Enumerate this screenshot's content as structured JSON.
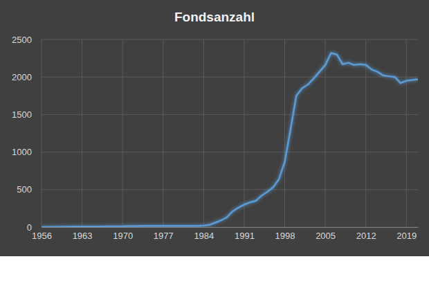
{
  "chart_data": {
    "type": "line",
    "title": "Fondsanzahl",
    "x": [
      1956,
      1957,
      1958,
      1959,
      1960,
      1961,
      1962,
      1963,
      1964,
      1965,
      1966,
      1967,
      1968,
      1969,
      1970,
      1971,
      1972,
      1973,
      1974,
      1975,
      1976,
      1977,
      1978,
      1979,
      1980,
      1981,
      1982,
      1983,
      1984,
      1985,
      1986,
      1987,
      1988,
      1989,
      1990,
      1991,
      1992,
      1993,
      1994,
      1995,
      1996,
      1997,
      1998,
      1999,
      2000,
      2001,
      2002,
      2003,
      2004,
      2005,
      2006,
      2007,
      2008,
      2009,
      2010,
      2011,
      2012,
      2013,
      2014,
      2015,
      2016,
      2017,
      2018,
      2019,
      2020,
      2021
    ],
    "values": [
      1,
      2,
      3,
      4,
      5,
      6,
      6,
      7,
      7,
      8,
      8,
      9,
      9,
      10,
      11,
      14,
      14,
      15,
      15,
      15,
      15,
      15,
      15,
      16,
      16,
      16,
      17,
      17,
      20,
      30,
      60,
      90,
      130,
      210,
      260,
      300,
      330,
      350,
      420,
      470,
      530,
      640,
      870,
      1300,
      1750,
      1850,
      1900,
      1980,
      2070,
      2160,
      2320,
      2300,
      2170,
      2190,
      2160,
      2170,
      2160,
      2100,
      2070,
      2020,
      2010,
      2000,
      1920,
      1950,
      1960,
      1970
    ],
    "color": "#5b9bd5",
    "xlim": [
      1956,
      2021
    ],
    "xticks": [
      1956,
      1963,
      1970,
      1977,
      1984,
      1991,
      1998,
      2005,
      2012,
      2019
    ],
    "ylim": [
      0,
      2500
    ],
    "yticks": [
      0,
      500,
      1000,
      1500,
      2000,
      2500
    ],
    "grid": true
  }
}
